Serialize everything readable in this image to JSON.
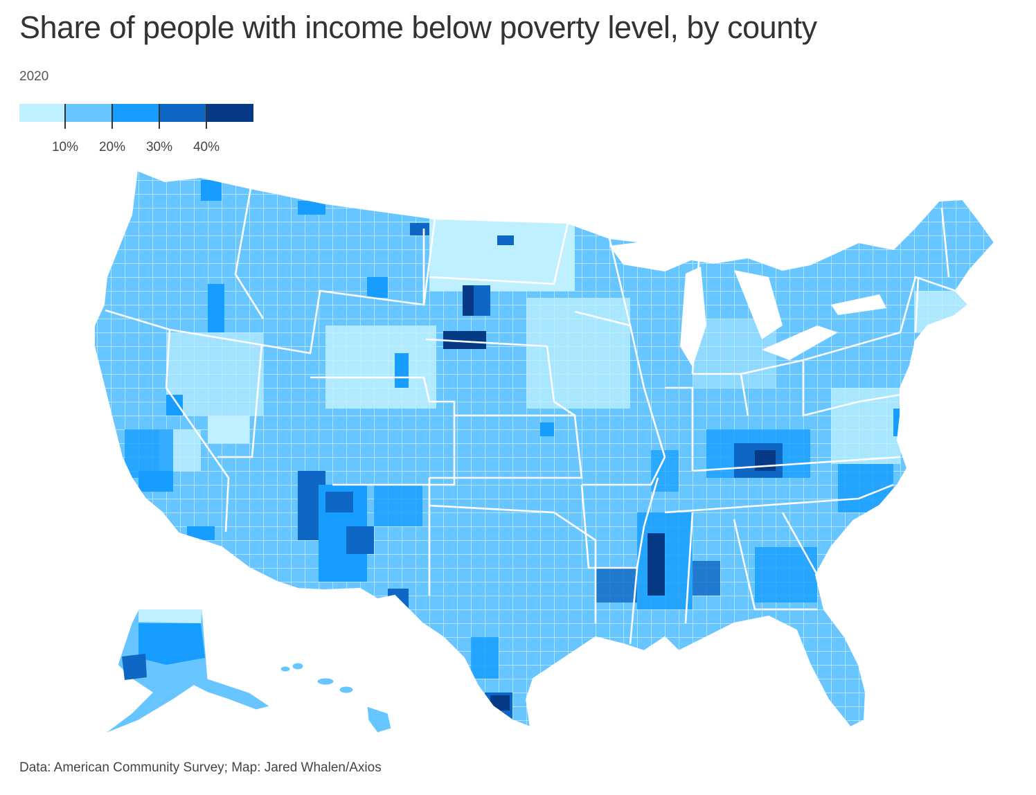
{
  "title": "Share of people with income below poverty level, by county",
  "subtitle": "2020",
  "source": "Data: American Community Survey; Map: Jared Whalen/Axios",
  "legend": {
    "colors": [
      "#bff0ff",
      "#67c6ff",
      "#179dff",
      "#0e67c4",
      "#073a85"
    ],
    "tick_labels": [
      "10%",
      "20%",
      "30%",
      "40%"
    ],
    "thresholds": [
      10,
      20,
      30,
      40
    ]
  },
  "colors": {
    "background": "#ffffff",
    "county_border": "#ffffff",
    "state_border": "#ffffff",
    "text": "#333333"
  }
}
